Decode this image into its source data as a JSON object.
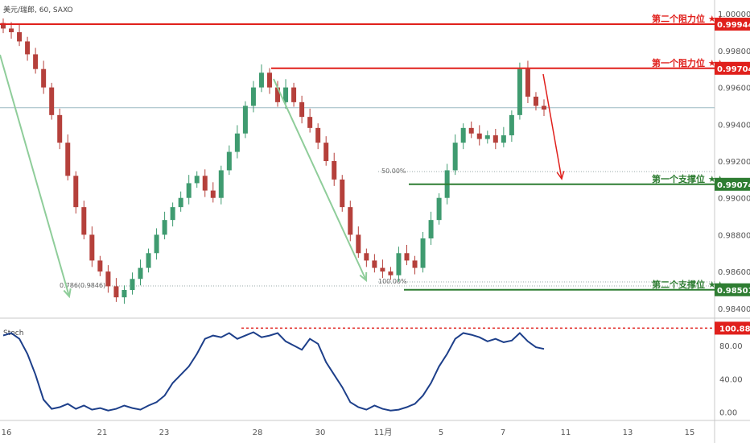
{
  "chart_data": {
    "type": "candlestick",
    "title": "美元/瑞郎, 60, SAXO",
    "price_axis": {
      "range": [
        0.9836,
        1.0004
      ],
      "ticks": [
        "1.00000",
        "0.99800",
        "0.99600",
        "0.99400",
        "0.99200",
        "0.99000",
        "0.98800",
        "0.98600",
        "0.98400"
      ]
    },
    "x_ticks": [
      "16",
      "21",
      "23",
      "28",
      "30",
      "11月",
      "5",
      "7",
      "11",
      "13",
      "15"
    ],
    "levels": [
      {
        "name": "第二个阻力位 ★★",
        "value": 0.99944,
        "label": "0.99944",
        "color": "#e0201c"
      },
      {
        "name": "第一个阻力位 ★★",
        "value": 0.99704,
        "label": "0.99704",
        "color": "#e0201c"
      },
      {
        "name": "第一个支撑位 ★★",
        "value": 0.99074,
        "label": "0.99074",
        "color": "#2e7d32"
      },
      {
        "name": "第二个支撑位 ★★",
        "value": 0.98501,
        "label": "0.98501",
        "color": "#2e7d32"
      }
    ],
    "fib_labels": [
      "0.786(0.9846)",
      "50.00%",
      "100.00%"
    ],
    "current_price": 0.9949,
    "series_close": [
      0.9992,
      0.999,
      0.9985,
      0.9978,
      0.997,
      0.996,
      0.9945,
      0.993,
      0.9912,
      0.9895,
      0.988,
      0.9866,
      0.986,
      0.9852,
      0.9846,
      0.985,
      0.9856,
      0.9862,
      0.987,
      0.988,
      0.9888,
      0.9895,
      0.99,
      0.9908,
      0.9912,
      0.9904,
      0.99,
      0.9915,
      0.9925,
      0.9935,
      0.995,
      0.996,
      0.9968,
      0.996,
      0.9952,
      0.996,
      0.9952,
      0.9944,
      0.9938,
      0.993,
      0.992,
      0.991,
      0.9895,
      0.988,
      0.987,
      0.9866,
      0.9862,
      0.986,
      0.9858,
      0.987,
      0.9866,
      0.9862,
      0.9878,
      0.9888,
      0.99,
      0.9915,
      0.993,
      0.9938,
      0.9935,
      0.9932,
      0.9934,
      0.993,
      0.9934,
      0.9945,
      0.997,
      0.9955,
      0.995,
      0.9948
    ],
    "stoch": {
      "label": "Stoch",
      "range": [
        -8,
        110
      ],
      "ticks": [
        "80.00",
        "40.00",
        "0.00"
      ],
      "level": {
        "value": 100.88,
        "label": "100.88"
      },
      "values": [
        92,
        95,
        88,
        70,
        45,
        15,
        4,
        6,
        10,
        4,
        8,
        3,
        5,
        2,
        4,
        8,
        5,
        3,
        8,
        12,
        20,
        35,
        45,
        55,
        70,
        88,
        92,
        90,
        95,
        88,
        92,
        96,
        90,
        92,
        95,
        85,
        80,
        75,
        88,
        82,
        60,
        45,
        30,
        12,
        6,
        3,
        8,
        4,
        2,
        3,
        6,
        10,
        20,
        35,
        55,
        70,
        88,
        95,
        93,
        90,
        85,
        88,
        84,
        86,
        95,
        85,
        78,
        76
      ]
    }
  }
}
